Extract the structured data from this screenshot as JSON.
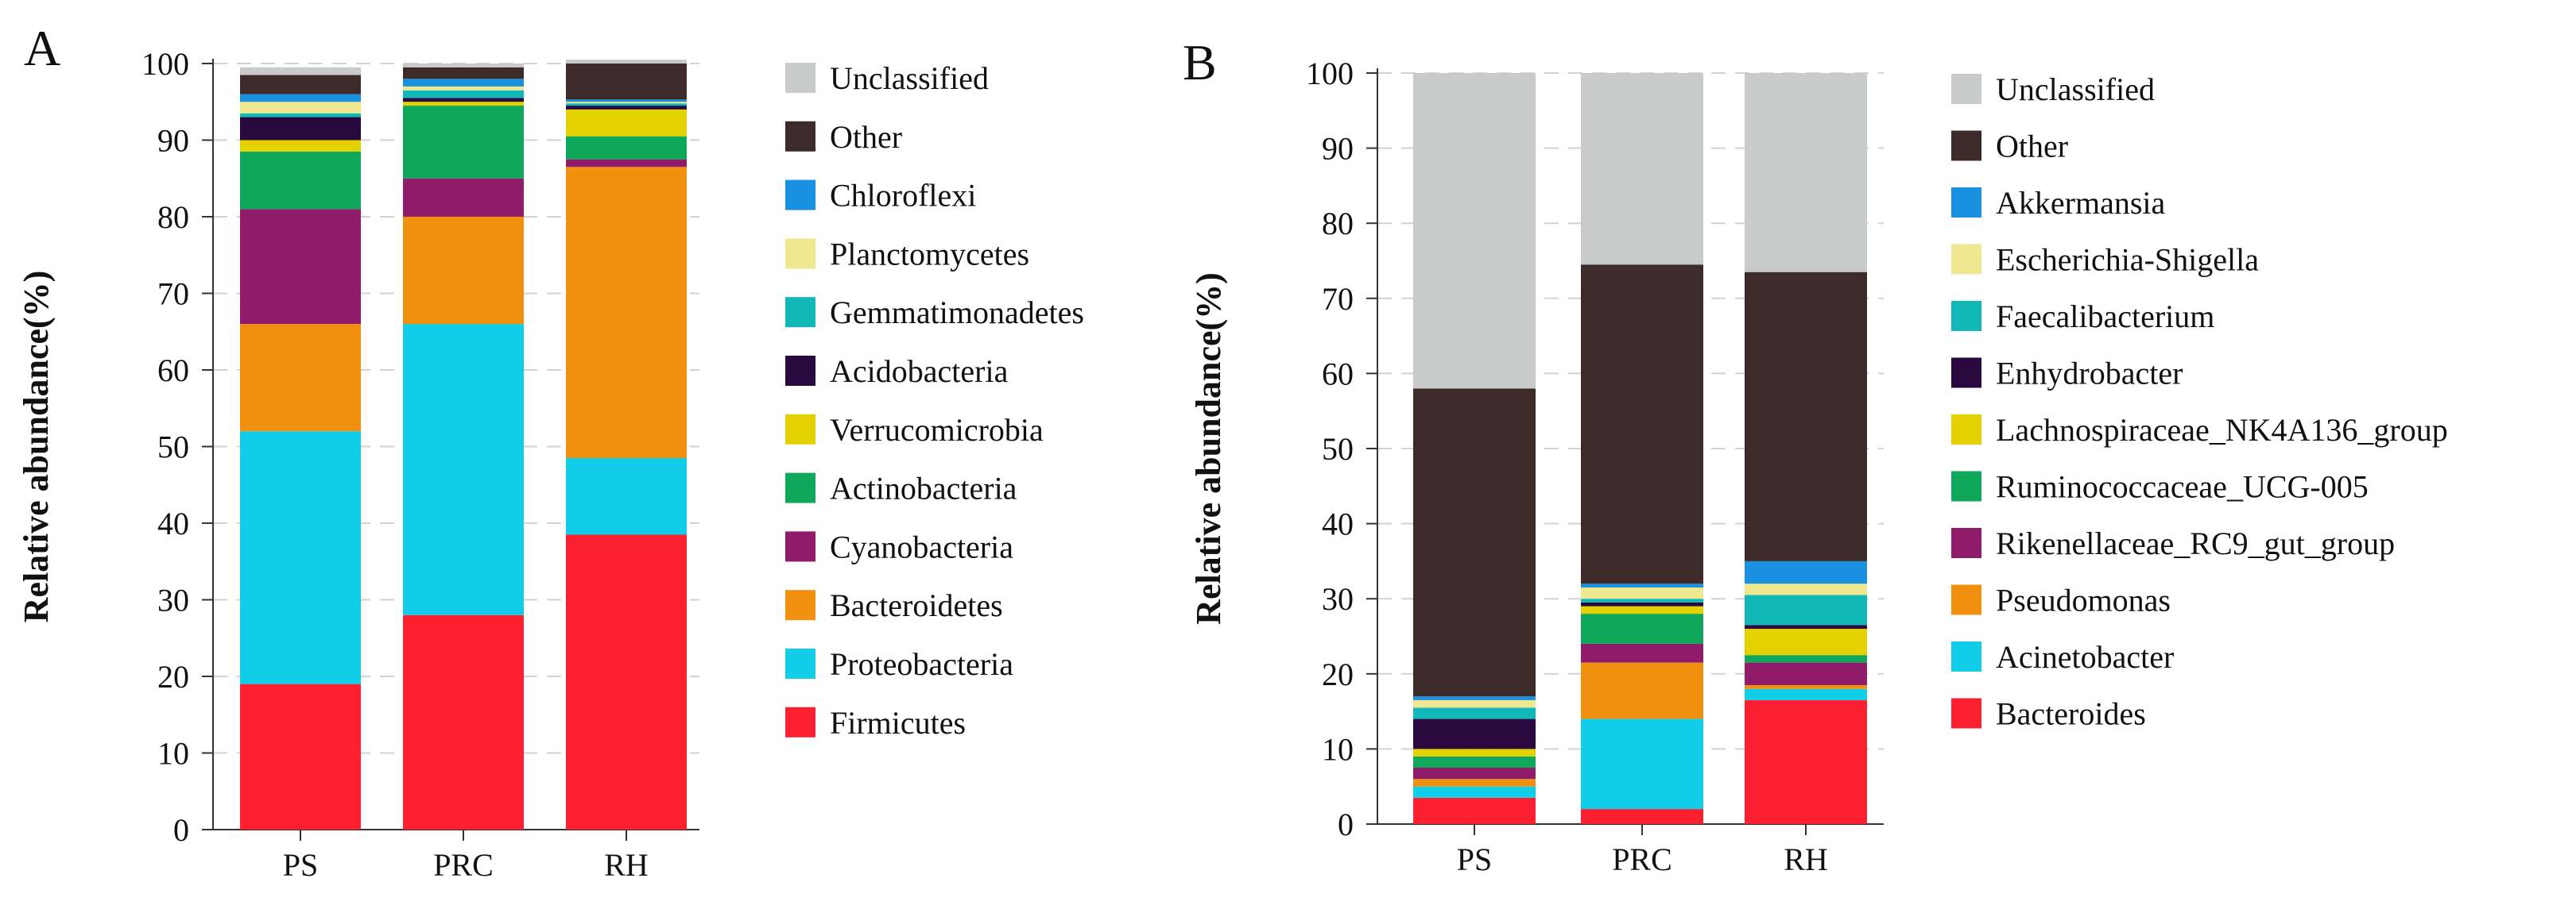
{
  "chart_data": [
    {
      "panel": "A",
      "type": "bar",
      "stacked": true,
      "xlabel": "",
      "ylabel": "Relative abundance(%)",
      "ylim": [
        0,
        100
      ],
      "yticks": [
        "0",
        "10",
        "20",
        "30",
        "40",
        "50",
        "60",
        "70",
        "80",
        "90",
        "100"
      ],
      "categories": [
        "PS",
        "PRC",
        "RH"
      ],
      "legend_position": "right",
      "series": [
        {
          "name": "Firmicutes",
          "color": "#fc2030",
          "values": [
            19,
            28,
            38.5
          ]
        },
        {
          "name": "Proteobacteria",
          "color": "#12cde8",
          "values": [
            33,
            38,
            10
          ]
        },
        {
          "name": "Bacteroidetes",
          "color": "#f0900e",
          "values": [
            14,
            14,
            38
          ]
        },
        {
          "name": "Cyanobacteria",
          "color": "#911b6b",
          "values": [
            15,
            5,
            1
          ]
        },
        {
          "name": "Actinobacteria",
          "color": "#0fa85b",
          "values": [
            7.5,
            9.5,
            3
          ]
        },
        {
          "name": "Verrucomicrobia",
          "color": "#e3d200",
          "values": [
            1.5,
            0.5,
            3.5
          ]
        },
        {
          "name": "Acidobacteria",
          "color": "#2a0a3e",
          "values": [
            3,
            0.5,
            0.5
          ]
        },
        {
          "name": "Gemmatimonadetes",
          "color": "#12b8b8",
          "values": [
            0.5,
            1,
            0.3
          ]
        },
        {
          "name": "Planctomycetes",
          "color": "#f0e890",
          "values": [
            1.5,
            0.5,
            0.2
          ]
        },
        {
          "name": "Chloroflexi",
          "color": "#1a90e0",
          "values": [
            1,
            1,
            0.3
          ]
        },
        {
          "name": "Other",
          "color": "#3c2b29",
          "values": [
            2.5,
            1.5,
            4.7
          ]
        },
        {
          "name": "Unclassified",
          "color": "#c8cbca",
          "values": [
            1,
            0.5,
            0.5
          ]
        }
      ]
    },
    {
      "panel": "B",
      "type": "bar",
      "stacked": true,
      "xlabel": "",
      "ylabel": "Relative abundance(%)",
      "ylim": [
        0,
        100
      ],
      "yticks": [
        "0",
        "10",
        "20",
        "30",
        "40",
        "50",
        "60",
        "70",
        "80",
        "90",
        "100"
      ],
      "categories": [
        "PS",
        "PRC",
        "RH"
      ],
      "legend_position": "right",
      "series": [
        {
          "name": "Bacteroides",
          "color": "#fc2030",
          "values": [
            3.5,
            2,
            16.5
          ]
        },
        {
          "name": "Acinetobacter",
          "color": "#12cde8",
          "values": [
            1.5,
            12,
            1.5
          ]
        },
        {
          "name": "Pseudomonas",
          "color": "#f0900e",
          "values": [
            1,
            7.5,
            0.5
          ]
        },
        {
          "name": "Rikenellaceae_RC9_gut_group",
          "color": "#911b6b",
          "values": [
            1.5,
            2.5,
            3
          ]
        },
        {
          "name": "Ruminococcaceae_UCG-005",
          "color": "#0fa85b",
          "values": [
            1.5,
            4,
            1
          ]
        },
        {
          "name": "Lachnospiraceae_NK4A136_group",
          "color": "#e3d200",
          "values": [
            1,
            1,
            3.5
          ]
        },
        {
          "name": "Enhydrobacter",
          "color": "#2a0a3e",
          "values": [
            4,
            0.5,
            0.5
          ]
        },
        {
          "name": "Faecalibacterium",
          "color": "#12b8b8",
          "values": [
            1.5,
            0.5,
            4
          ]
        },
        {
          "name": "Escherichia-Shigella",
          "color": "#f0e890",
          "values": [
            1,
            1.5,
            1.5
          ]
        },
        {
          "name": "Akkermansia",
          "color": "#1a90e0",
          "values": [
            0.5,
            0.5,
            3
          ]
        },
        {
          "name": "Other",
          "color": "#3c2b29",
          "values": [
            41,
            42.5,
            38.5
          ]
        },
        {
          "name": "Unclassified",
          "color": "#c8cbca",
          "values": [
            42,
            25.5,
            26.5
          ]
        }
      ]
    }
  ]
}
